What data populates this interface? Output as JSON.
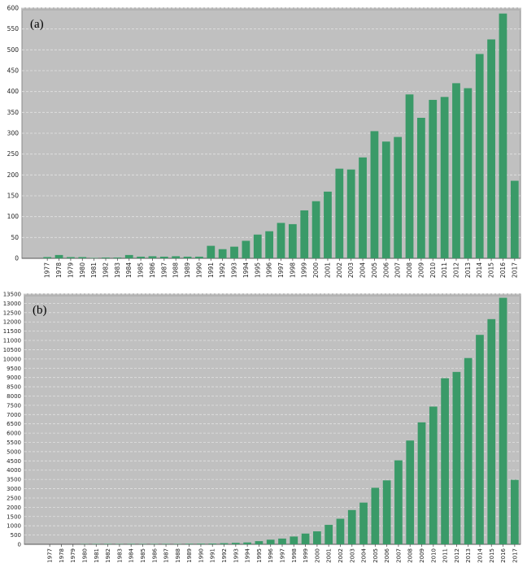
{
  "charts": [
    {
      "type": "bar",
      "panel_label": "(a)",
      "categories": [
        "1977",
        "1978",
        "1979",
        "1980",
        "1981",
        "1982",
        "1983",
        "1984",
        "1985",
        "1986",
        "1987",
        "1988",
        "1989",
        "1990",
        "1991",
        "1992",
        "1993",
        "1994",
        "1995",
        "1996",
        "1997",
        "1998",
        "1999",
        "2000",
        "2001",
        "2002",
        "2003",
        "2004",
        "2005",
        "2006",
        "2007",
        "2008",
        "2009",
        "2010",
        "2011",
        "2012",
        "2013",
        "2014",
        "2015",
        "2016",
        "2017"
      ],
      "values": [
        3,
        8,
        3,
        3,
        1,
        2,
        2,
        8,
        4,
        5,
        4,
        5,
        4,
        4,
        30,
        22,
        28,
        42,
        57,
        65,
        85,
        82,
        115,
        137,
        160,
        215,
        213,
        242,
        305,
        280,
        291,
        393,
        337,
        380,
        387,
        420,
        408,
        490,
        525,
        587,
        186
      ],
      "ylim": [
        0,
        600
      ],
      "yticks": [
        0,
        50,
        100,
        150,
        200,
        250,
        300,
        350,
        400,
        450,
        500,
        550,
        600
      ],
      "grid": true,
      "bar_color": "#3a9a68",
      "plot_bg": "#c0c0c0"
    },
    {
      "type": "bar",
      "panel_label": "(b)",
      "categories": [
        "1977",
        "1978",
        "1979",
        "1980",
        "1981",
        "1982",
        "1983",
        "1984",
        "1985",
        "1986",
        "1987",
        "1988",
        "1989",
        "1990",
        "1991",
        "1992",
        "1993",
        "1994",
        "1995",
        "1996",
        "1997",
        "1998",
        "1999",
        "2000",
        "2001",
        "2002",
        "2003",
        "2004",
        "2005",
        "2006",
        "2007",
        "2008",
        "2009",
        "2010",
        "2011",
        "2012",
        "2013",
        "2014",
        "2015",
        "2016",
        "2017"
      ],
      "values": [
        0,
        0,
        0,
        15,
        20,
        25,
        20,
        25,
        20,
        22,
        25,
        20,
        30,
        35,
        40,
        60,
        80,
        100,
        170,
        250,
        310,
        420,
        580,
        700,
        1050,
        1380,
        1850,
        2250,
        3050,
        3450,
        4530,
        5600,
        6580,
        7430,
        8960,
        9300,
        10050,
        11300,
        12150,
        13300,
        3480
      ],
      "ylim": [
        0,
        13500
      ],
      "yticks": [
        0,
        500,
        1000,
        1500,
        2000,
        2500,
        3000,
        3500,
        4000,
        4500,
        5000,
        5500,
        6000,
        6500,
        7000,
        7500,
        8000,
        8500,
        9000,
        9500,
        10000,
        10500,
        11000,
        11500,
        12000,
        12500,
        13000,
        13500
      ],
      "grid": true,
      "bar_color": "#3a9a68",
      "plot_bg": "#c0c0c0"
    }
  ]
}
